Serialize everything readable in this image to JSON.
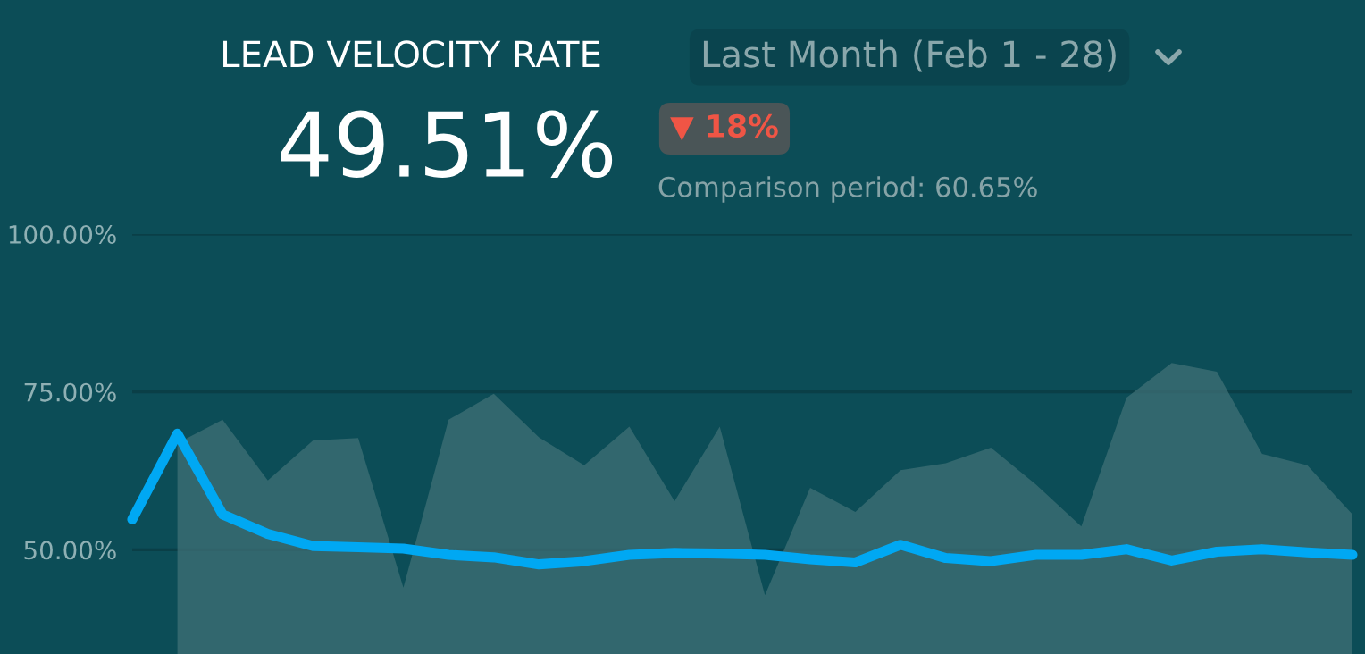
{
  "chart_data": {
    "type": "area",
    "title": "LEAD VELOCITY RATE",
    "annotations": [
      "49.51%",
      "Last Month (Feb 1 - 28)",
      "▼ 18%",
      "Comparison period: 60.65%"
    ],
    "categories": [
      null,
      null,
      null,
      null,
      null,
      null,
      null,
      null,
      null,
      null,
      null,
      null,
      null,
      null,
      null,
      null,
      null,
      null,
      null,
      null,
      null,
      null,
      null,
      null,
      null,
      null,
      null,
      null
    ],
    "series": [
      {
        "type": "area",
        "color": "#3f7076",
        "values": [
          null,
          66.9,
          70.6,
          61.0,
          67.3,
          67.7,
          44.0,
          70.6,
          74.7,
          67.8,
          63.4,
          69.5,
          57.7,
          69.5,
          42.8,
          59.8,
          56.0,
          62.6,
          63.7,
          66.2,
          60.3,
          53.7,
          74.1,
          79.6,
          78.2,
          65.2,
          63.4,
          55.6
        ]
      },
      {
        "type": "line",
        "color": "#00a8f3",
        "values": [
          54.8,
          68.4,
          55.6,
          52.5,
          50.6,
          50.4,
          50.2,
          49.2,
          48.8,
          47.7,
          48.2,
          49.2,
          49.5,
          49.4,
          49.2,
          48.5,
          48.0,
          50.8,
          48.7,
          48.2,
          49.2,
          49.2,
          50.1,
          48.3,
          49.7,
          50.1,
          49.6,
          49.2
        ]
      }
    ],
    "ylim": [
      33.5,
      100
    ],
    "yticks": [
      {
        "value": 50,
        "label": "50.00%"
      },
      {
        "value": 75,
        "label": "75.00%"
      },
      {
        "value": 100,
        "label": "100.00%"
      }
    ],
    "grid": "y",
    "tick_labels": "y",
    "legend": false
  }
}
